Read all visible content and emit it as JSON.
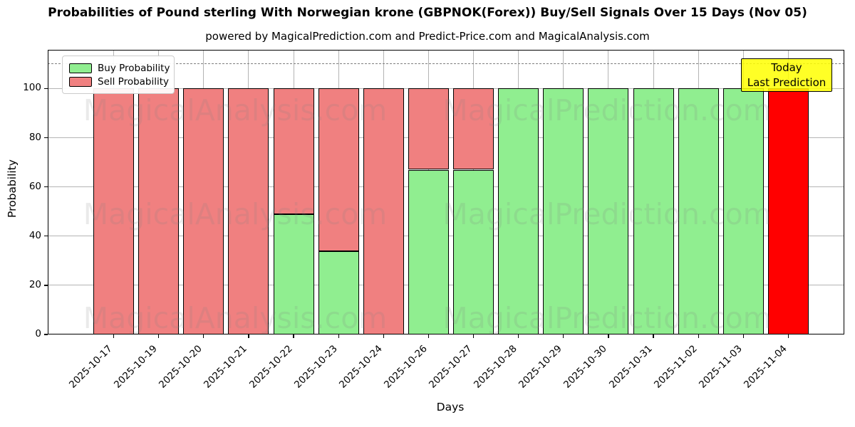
{
  "title": "Probabilities of Pound sterling With Norwegian krone (GBPNOK(Forex)) Buy/Sell Signals Over 15 Days (Nov 05)",
  "subtitle": "powered by MagicalPrediction.com and Predict-Price.com and MagicalAnalysis.com",
  "legend": {
    "items": [
      {
        "label": "Buy Probability",
        "color": "#90ee90"
      },
      {
        "label": "Sell Probability",
        "color": "#f08080"
      }
    ]
  },
  "annotation": {
    "line1": "Today",
    "line2": "Last Prediction",
    "bg_color": "#ffff00",
    "border_color": "#000000"
  },
  "watermarks": {
    "left_text": "MagicalAnalysis.com",
    "right_text": "MagicalPrediction.com"
  },
  "chart_data": {
    "type": "bar",
    "stacked": true,
    "title": "Probabilities of Pound sterling With Norwegian krone (GBPNOK(Forex)) Buy/Sell Signals Over 15 Days (Nov 05)",
    "subtitle": "powered by MagicalPrediction.com and Predict-Price.com and MagicalAnalysis.com",
    "xlabel": "Days",
    "ylabel": "Probability",
    "categories": [
      "2025-10-17",
      "2025-10-19",
      "2025-10-20",
      "2025-10-21",
      "2025-10-22",
      "2025-10-23",
      "2025-10-24",
      "2025-10-26",
      "2025-10-27",
      "2025-10-28",
      "2025-10-29",
      "2025-10-30",
      "2025-10-31",
      "2025-11-02",
      "2025-11-03",
      "2025-11-04"
    ],
    "series": [
      {
        "name": "Buy Probability",
        "color": "#90ee90",
        "values": [
          0,
          0,
          0,
          0,
          49,
          34,
          0,
          67,
          67,
          100,
          100,
          100,
          100,
          100,
          100,
          0
        ]
      },
      {
        "name": "Sell Probability",
        "color": "#f08080",
        "values": [
          100,
          100,
          100,
          100,
          51,
          66,
          100,
          33,
          33,
          0,
          0,
          0,
          0,
          0,
          0,
          100
        ]
      }
    ],
    "today_bar": {
      "category": "2025-11-04",
      "index": 15,
      "color": "#ff0000",
      "total": 100
    },
    "yticks": [
      0,
      20,
      40,
      60,
      80,
      100
    ],
    "ylim": [
      0,
      115.8
    ],
    "threshold_line": {
      "y": 110,
      "style": "dashed",
      "color": "#7f7f7f"
    },
    "grid": true,
    "bar_edge_color": "#000000",
    "legend_position": "upper left"
  }
}
